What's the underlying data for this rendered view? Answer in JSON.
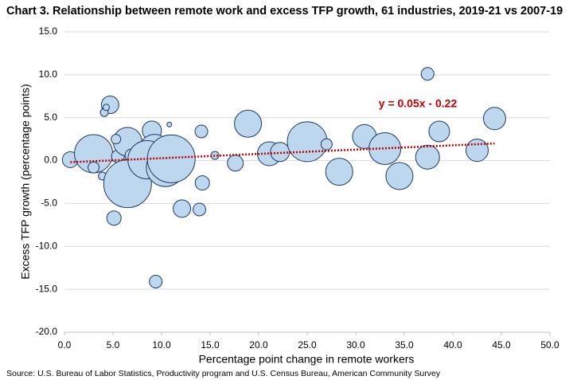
{
  "chart_data": {
    "type": "bubble",
    "title": "Chart 3. Relationship between remote work and excess TFP growth, 61 industries, 2019-21 vs 2007-19",
    "x_label": "Percentage point change in remote workers",
    "y_label": "Excess TFP growth (percentage points)",
    "source": "Source: U.S. Bureau of Labor Statistics, Productivity program and U.S. Census Bureau, American Community Survey",
    "x": [
      0.6,
      4.7,
      4.1,
      4.3,
      3.0,
      3.9,
      3.0,
      5.1,
      5.5,
      6.5,
      6.9,
      6.5,
      5.3,
      9.0,
      9.4,
      10.8,
      9.3,
      8.5,
      10.4,
      11.0,
      12.1,
      14.1,
      14.2,
      13.9,
      15.5,
      17.6,
      18.9,
      21.1,
      22.2,
      25.0,
      27.0,
      28.3,
      30.9,
      33.0,
      34.5,
      37.4,
      37.4,
      38.6,
      42.5,
      44.3
    ],
    "values": [
      0.1,
      6.5,
      5.6,
      6.2,
      0.8,
      -1.8,
      -0.8,
      -6.7,
      0.5,
      2.2,
      0.6,
      -2.7,
      2.5,
      3.5,
      -14.1,
      4.2,
      1.2,
      0.1,
      -0.8,
      0.2,
      -5.6,
      3.4,
      -2.6,
      -5.7,
      0.6,
      -0.3,
      4.3,
      0.8,
      1.0,
      2.2,
      1.9,
      -1.3,
      2.8,
      1.4,
      -1.8,
      10.1,
      0.4,
      3.4,
      1.2,
      4.9
    ],
    "sizes": [
      10,
      11,
      5,
      4,
      24,
      5,
      7,
      9,
      8,
      18,
      8,
      30,
      6,
      12,
      8,
      3,
      20,
      24,
      24,
      30,
      11,
      8,
      9,
      8,
      5,
      10,
      17,
      15,
      12,
      25,
      7,
      17,
      15,
      20,
      17,
      8,
      15,
      13,
      14,
      14
    ],
    "color": "#bdd7ee",
    "edge_color": "#1f3864",
    "trendline": {
      "slope": 0.05,
      "intercept": -0.22,
      "label": "y = 0.05x - 0.22",
      "color": "#c00000"
    },
    "xlim": [
      0,
      50
    ],
    "xticks": [
      {
        "value": 0,
        "label": "0.0"
      },
      {
        "value": 5,
        "label": "5.0"
      },
      {
        "value": 10,
        "label": "10.0"
      },
      {
        "value": 15,
        "label": "15.0"
      },
      {
        "value": 20,
        "label": "20.0"
      },
      {
        "value": 25,
        "label": "25.0"
      },
      {
        "value": 30,
        "label": "30.0"
      },
      {
        "value": 35,
        "label": "35.0"
      },
      {
        "value": 40,
        "label": "40.0"
      },
      {
        "value": 45,
        "label": "45.0"
      },
      {
        "value": 50,
        "label": "50.0"
      }
    ],
    "ylim": [
      -20,
      15
    ],
    "yticks": [
      {
        "value": -20,
        "label": "-20.0"
      },
      {
        "value": -15,
        "label": "-15.0"
      },
      {
        "value": -10,
        "label": "-10.0"
      },
      {
        "value": -5,
        "label": "-5.0"
      },
      {
        "value": 0,
        "label": "0.0"
      },
      {
        "value": 5,
        "label": "5.0"
      },
      {
        "value": 10,
        "label": "10.0"
      },
      {
        "value": 15,
        "label": "15.0"
      }
    ],
    "grid": true
  }
}
